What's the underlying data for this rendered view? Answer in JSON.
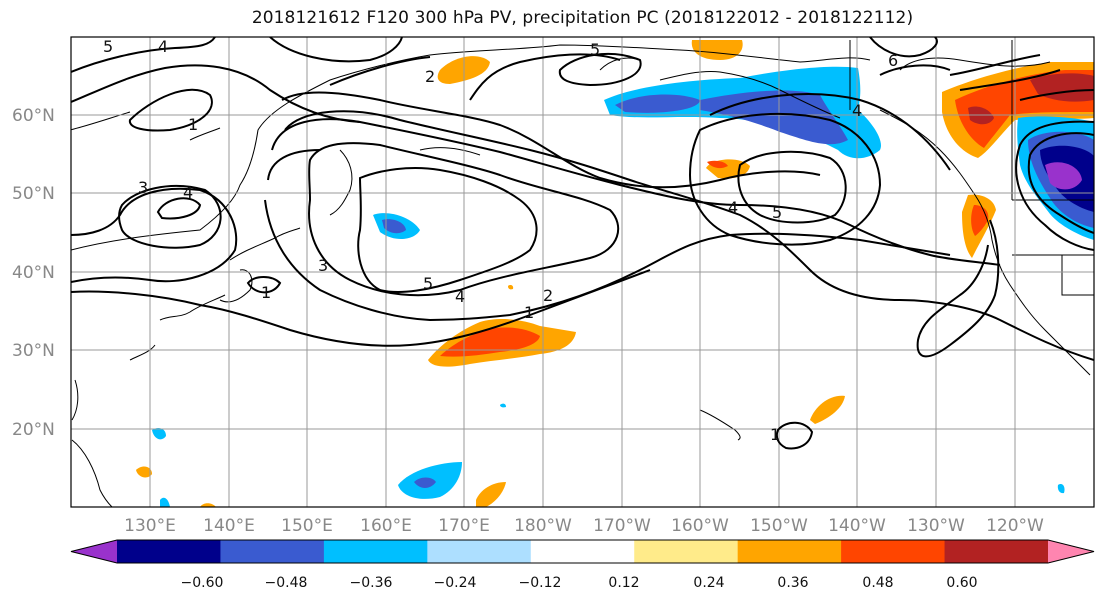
{
  "title": "2018121612 F120 300 hPa PV, precipitation PC (2018122012 - 2018122112)",
  "map": {
    "lat_labels": [
      "60°N",
      "50°N",
      "40°N",
      "30°N",
      "20°N"
    ],
    "lon_labels": [
      "130°E",
      "140°E",
      "150°E",
      "160°E",
      "170°E",
      "180°W",
      "170°W",
      "160°W",
      "150°W",
      "140°W",
      "130°W",
      "120°W"
    ],
    "contour_labels": [
      "5",
      "4",
      "1",
      "3",
      "4",
      "2",
      "5",
      "6",
      "4",
      "4",
      "5",
      "3",
      "5",
      "4",
      "2",
      "1",
      "1",
      "1"
    ]
  },
  "colorbar": {
    "ticks": [
      "−0.60",
      "−0.48",
      "−0.36",
      "−0.24",
      "−0.12",
      "0.12",
      "0.24",
      "0.36",
      "0.48",
      "0.60"
    ],
    "colors": [
      "#9932CC",
      "#00008B",
      "#3A5BD0",
      "#00BFFF",
      "#ADDFFF",
      "#FFFFFF",
      "#FFEB8A",
      "#FFA500",
      "#FF4500",
      "#B22222",
      "#FF85B0"
    ]
  }
}
